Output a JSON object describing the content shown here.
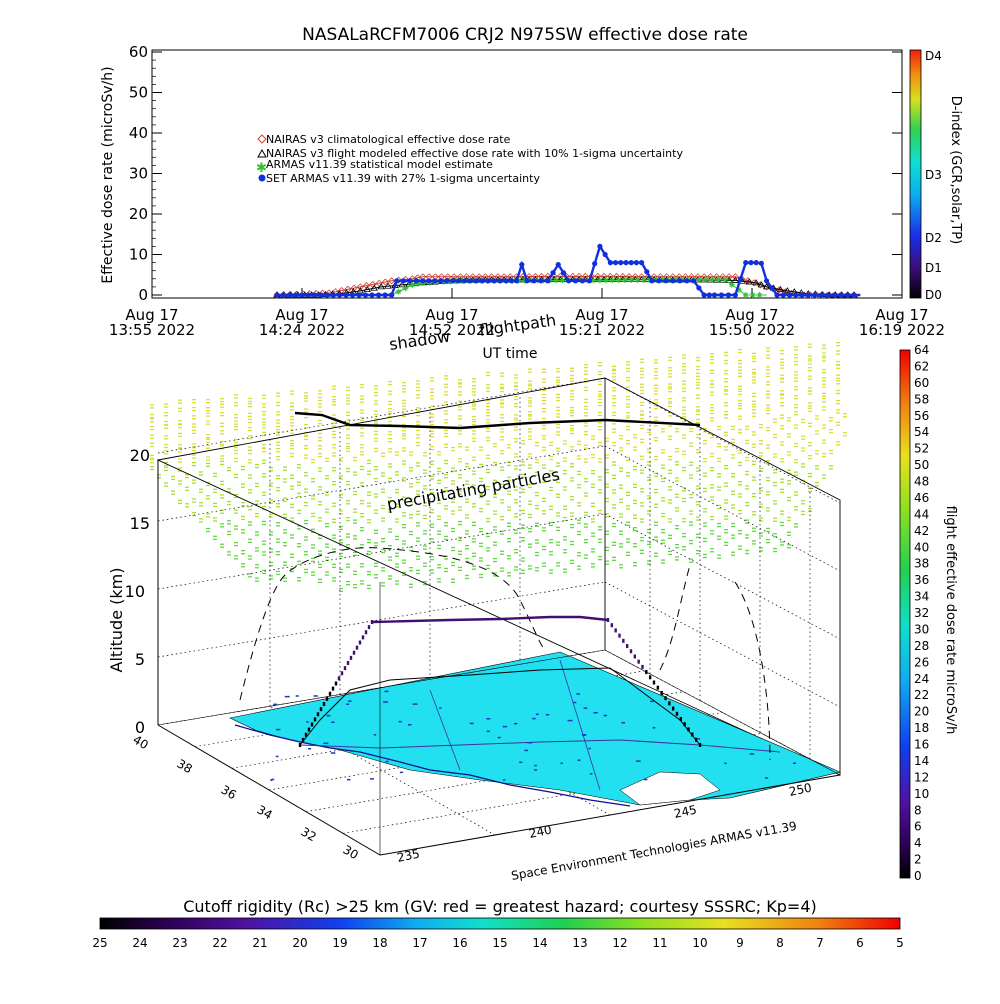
{
  "top_chart": {
    "title": "NASALaRCFM7006  CRJ2 N975SW effective dose rate",
    "ylabel": "Effective dose rate (microSv/h)",
    "xlabel": "UT time",
    "y_ticks": [
      "0",
      "10",
      "20",
      "30",
      "40",
      "50",
      "60"
    ],
    "x_ticks": [
      {
        "date": "Aug 17",
        "time": "13:55 2022"
      },
      {
        "date": "Aug 17",
        "time": "14:24 2022"
      },
      {
        "date": "Aug 17",
        "time": "14:52 2022"
      },
      {
        "date": "Aug 17",
        "time": "15:21 2022"
      },
      {
        "date": "Aug 17",
        "time": "15:50 2022"
      },
      {
        "date": "Aug 17",
        "time": "16:19 2022"
      }
    ],
    "legend": [
      {
        "label": "NAIRAS v3 climatological effective dose rate",
        "color": "#d04030",
        "marker": "diamond"
      },
      {
        "label": "NAIRAS v3 flight modeled effective dose rate with 10% 1-sigma uncertainty",
        "color": "#000000",
        "marker": "triangle"
      },
      {
        "label": "ARMAS v11.39 statistical model estimate",
        "color": "#30c030",
        "marker": "asterisk"
      },
      {
        "label": "SET ARMAS v11.39 with 27% 1-sigma uncertainty",
        "color": "#1030e0",
        "marker": "dot"
      }
    ],
    "right_axis": {
      "label": "D-index (GCR,solar,TP)",
      "ticks": [
        "D4",
        "D3",
        "D2",
        "D1",
        "D0"
      ]
    }
  },
  "chart_data": {
    "type": "line",
    "title": "NASALaRCFM7006  CRJ2 N975SW effective dose rate",
    "xlabel": "UT time",
    "ylabel": "Effective dose rate (microSv/h)",
    "ylim": [
      0,
      60
    ],
    "xlim_minutes": [
      0,
      144
    ],
    "x_unit": "minutes after Aug 17 13:55 2022 UT",
    "series": [
      {
        "name": "NAIRAS v3 climatological effective dose rate",
        "x": [
          24,
          34,
          40,
          46,
          50,
          52,
          58,
          64,
          70,
          76,
          82,
          88,
          94,
          100,
          106,
          112,
          118,
          124,
          130,
          136
        ],
        "values": [
          0,
          0.5,
          2,
          3.5,
          4,
          4.5,
          4.5,
          4.5,
          4.5,
          4.6,
          4.6,
          4.6,
          4.5,
          4.5,
          4.5,
          4.5,
          2,
          0,
          0,
          0
        ]
      },
      {
        "name": "NAIRAS v3 flight modeled effective dose rate with 10% 1-sigma uncertainty",
        "x": [
          24,
          28,
          32,
          36,
          40,
          44,
          48,
          52,
          58,
          64,
          70,
          76,
          82,
          88,
          94,
          100,
          106,
          112,
          116,
          118,
          122,
          126,
          130,
          136
        ],
        "values": [
          0,
          0,
          0,
          0.3,
          1,
          2,
          2.5,
          3,
          3.5,
          3.7,
          3.7,
          3.8,
          3.8,
          3.8,
          3.8,
          3.7,
          3.7,
          3.6,
          3,
          2,
          1,
          0.3,
          0,
          0
        ]
      },
      {
        "name": "ARMAS v11.39 statistical model estimate",
        "x": [
          46,
          50,
          52,
          56,
          62,
          68,
          74,
          80,
          86,
          92,
          98,
          104,
          110,
          114,
          118
        ],
        "values": [
          0,
          2.5,
          3,
          3.3,
          3.5,
          3.5,
          3.6,
          3.6,
          3.6,
          3.7,
          3.7,
          3.8,
          3.8,
          0,
          0
        ]
      },
      {
        "name": "SET ARMAS v11.39 with 27% 1-sigma uncertainty",
        "x": [
          24,
          36,
          46,
          47,
          52,
          60,
          68,
          70,
          71,
          72,
          76,
          78,
          80,
          84,
          86,
          88,
          90,
          92,
          94,
          96,
          100,
          104,
          106,
          108,
          112,
          114,
          116,
          117,
          118,
          120,
          126,
          136
        ],
        "values": [
          0,
          0,
          0,
          3.5,
          3.5,
          3.5,
          3.5,
          3.5,
          7.5,
          3.5,
          3.5,
          7.5,
          3.5,
          3.5,
          12,
          8,
          8,
          8,
          8,
          3.5,
          3.5,
          3.5,
          0,
          0,
          0,
          8,
          8,
          7.8,
          3.5,
          0,
          0,
          0
        ]
      }
    ],
    "colorbar_right": {
      "label": "flight effective dose rate microSv/h",
      "ticks": [
        "0",
        "2",
        "4",
        "6",
        "8",
        "10",
        "12",
        "14",
        "16",
        "18",
        "20",
        "22",
        "24",
        "26",
        "28",
        "30",
        "32",
        "34",
        "36",
        "38",
        "40",
        "42",
        "44",
        "46",
        "48",
        "50",
        "52",
        "54",
        "56",
        "58",
        "60",
        "62",
        "64"
      ],
      "range": [
        0,
        64
      ]
    },
    "colorbar_bottom": {
      "label": "Cutoff rigidity (Rc) >25 km (GV: red = greatest hazard; courtesy SSSRC; Kp=4)",
      "ticks": [
        "25",
        "24",
        "23",
        "22",
        "21",
        "20",
        "19",
        "18",
        "17",
        "16",
        "15",
        "14",
        "13",
        "12",
        "11",
        "10",
        "9",
        "8",
        "7",
        "6",
        "5"
      ]
    }
  },
  "plot3d": {
    "zlabel": "Altitude (km)",
    "z_ticks": [
      "0",
      "5",
      "10",
      "15",
      "20"
    ],
    "lat_ticks": [
      "40",
      "38",
      "36",
      "34",
      "32",
      "30"
    ],
    "lon_ticks": [
      "235",
      "240",
      "245",
      "250"
    ],
    "labels": {
      "shadow": "shadow",
      "flightpath": "flightpath",
      "precip": "precipitating particles",
      "credit": "Space Environment Technologies ARMAS v11.39"
    }
  },
  "colors": {
    "nairas_clim": "#d04030",
    "nairas_flight": "#000000",
    "armas_stat": "#30c030",
    "set_armas": "#1030e0",
    "map_fill": "#22e0f0"
  }
}
